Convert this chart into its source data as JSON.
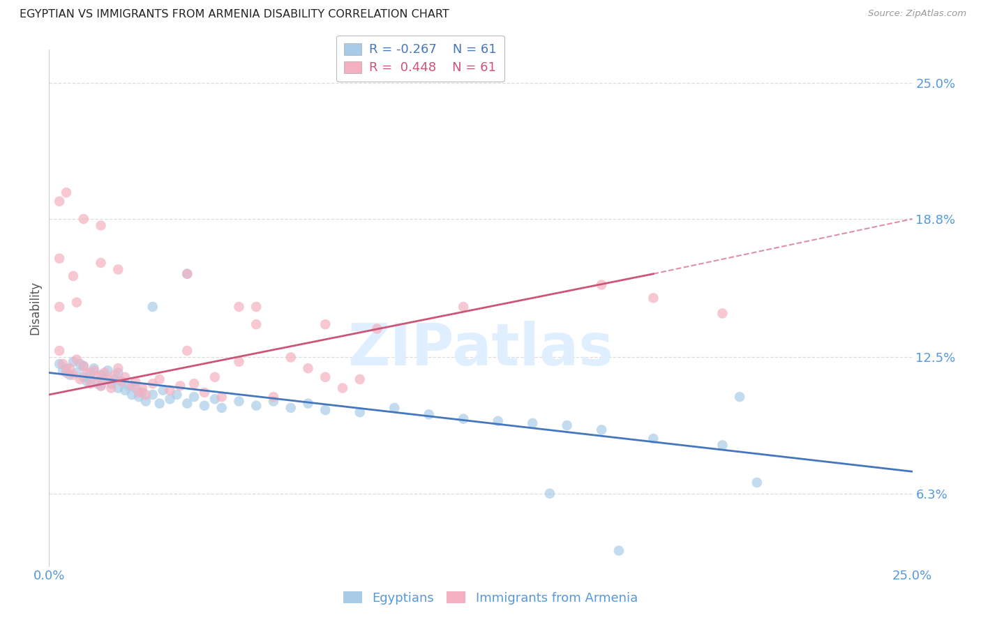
{
  "title": "EGYPTIAN VS IMMIGRANTS FROM ARMENIA DISABILITY CORRELATION CHART",
  "source": "Source: ZipAtlas.com",
  "ylabel": "Disability",
  "watermark": "ZIPatlas",
  "xlim": [
    0.0,
    0.25
  ],
  "ylim": [
    0.03,
    0.265
  ],
  "ytick_labels": [
    "6.3%",
    "12.5%",
    "18.8%",
    "25.0%"
  ],
  "ytick_values": [
    0.063,
    0.125,
    0.188,
    0.25
  ],
  "xtick_labels": [
    "0.0%",
    "25.0%"
  ],
  "xtick_values": [
    0.0,
    0.25
  ],
  "legend_r_blue": "-0.267",
  "legend_r_pink": "0.448",
  "legend_n": "61",
  "blue_color": "#a8cce8",
  "pink_color": "#f4b0c0",
  "line_blue_color": "#4477bb",
  "line_pink_color": "#cc5577",
  "axis_label_color": "#5599dd",
  "grid_color": "#dddddd",
  "background_color": "#ffffff",
  "blue_line": [
    [
      0.0,
      0.118
    ],
    [
      0.25,
      0.073
    ]
  ],
  "pink_line_solid": [
    [
      0.0,
      0.108
    ],
    [
      0.175,
      0.163
    ]
  ],
  "pink_line_dash": [
    [
      0.175,
      0.163
    ],
    [
      0.25,
      0.188
    ]
  ],
  "blue_scatter": [
    [
      0.003,
      0.122
    ],
    [
      0.004,
      0.119
    ],
    [
      0.005,
      0.12
    ],
    [
      0.006,
      0.117
    ],
    [
      0.007,
      0.123
    ],
    [
      0.008,
      0.118
    ],
    [
      0.009,
      0.122
    ],
    [
      0.01,
      0.116
    ],
    [
      0.01,
      0.121
    ],
    [
      0.011,
      0.114
    ],
    [
      0.012,
      0.118
    ],
    [
      0.012,
      0.115
    ],
    [
      0.013,
      0.12
    ],
    [
      0.014,
      0.113
    ],
    [
      0.015,
      0.117
    ],
    [
      0.015,
      0.112
    ],
    [
      0.016,
      0.116
    ],
    [
      0.017,
      0.119
    ],
    [
      0.018,
      0.113
    ],
    [
      0.019,
      0.115
    ],
    [
      0.02,
      0.118
    ],
    [
      0.02,
      0.111
    ],
    [
      0.021,
      0.114
    ],
    [
      0.022,
      0.11
    ],
    [
      0.023,
      0.112
    ],
    [
      0.024,
      0.108
    ],
    [
      0.025,
      0.111
    ],
    [
      0.026,
      0.107
    ],
    [
      0.027,
      0.109
    ],
    [
      0.028,
      0.105
    ],
    [
      0.03,
      0.108
    ],
    [
      0.032,
      0.104
    ],
    [
      0.033,
      0.11
    ],
    [
      0.035,
      0.106
    ],
    [
      0.037,
      0.108
    ],
    [
      0.04,
      0.104
    ],
    [
      0.042,
      0.107
    ],
    [
      0.045,
      0.103
    ],
    [
      0.048,
      0.106
    ],
    [
      0.05,
      0.102
    ],
    [
      0.055,
      0.105
    ],
    [
      0.06,
      0.103
    ],
    [
      0.065,
      0.105
    ],
    [
      0.07,
      0.102
    ],
    [
      0.075,
      0.104
    ],
    [
      0.08,
      0.101
    ],
    [
      0.09,
      0.1
    ],
    [
      0.1,
      0.102
    ],
    [
      0.11,
      0.099
    ],
    [
      0.12,
      0.097
    ],
    [
      0.13,
      0.096
    ],
    [
      0.14,
      0.095
    ],
    [
      0.15,
      0.094
    ],
    [
      0.16,
      0.092
    ],
    [
      0.175,
      0.088
    ],
    [
      0.195,
      0.085
    ],
    [
      0.03,
      0.148
    ],
    [
      0.04,
      0.163
    ],
    [
      0.2,
      0.107
    ],
    [
      0.205,
      0.068
    ],
    [
      0.145,
      0.063
    ],
    [
      0.165,
      0.037
    ]
  ],
  "pink_scatter": [
    [
      0.003,
      0.128
    ],
    [
      0.004,
      0.122
    ],
    [
      0.005,
      0.118
    ],
    [
      0.006,
      0.12
    ],
    [
      0.007,
      0.117
    ],
    [
      0.008,
      0.124
    ],
    [
      0.009,
      0.115
    ],
    [
      0.01,
      0.121
    ],
    [
      0.011,
      0.118
    ],
    [
      0.012,
      0.113
    ],
    [
      0.013,
      0.119
    ],
    [
      0.014,
      0.116
    ],
    [
      0.015,
      0.112
    ],
    [
      0.016,
      0.118
    ],
    [
      0.017,
      0.115
    ],
    [
      0.018,
      0.111
    ],
    [
      0.019,
      0.117
    ],
    [
      0.02,
      0.12
    ],
    [
      0.021,
      0.114
    ],
    [
      0.022,
      0.116
    ],
    [
      0.024,
      0.112
    ],
    [
      0.025,
      0.114
    ],
    [
      0.026,
      0.109
    ],
    [
      0.027,
      0.111
    ],
    [
      0.028,
      0.108
    ],
    [
      0.03,
      0.113
    ],
    [
      0.032,
      0.115
    ],
    [
      0.035,
      0.11
    ],
    [
      0.038,
      0.112
    ],
    [
      0.04,
      0.128
    ],
    [
      0.042,
      0.113
    ],
    [
      0.045,
      0.109
    ],
    [
      0.048,
      0.116
    ],
    [
      0.05,
      0.107
    ],
    [
      0.055,
      0.123
    ],
    [
      0.06,
      0.14
    ],
    [
      0.065,
      0.107
    ],
    [
      0.07,
      0.125
    ],
    [
      0.075,
      0.12
    ],
    [
      0.08,
      0.116
    ],
    [
      0.085,
      0.111
    ],
    [
      0.09,
      0.115
    ],
    [
      0.003,
      0.196
    ],
    [
      0.005,
      0.2
    ],
    [
      0.01,
      0.188
    ],
    [
      0.015,
      0.185
    ],
    [
      0.003,
      0.17
    ],
    [
      0.007,
      0.162
    ],
    [
      0.003,
      0.148
    ],
    [
      0.008,
      0.15
    ],
    [
      0.015,
      0.168
    ],
    [
      0.02,
      0.165
    ],
    [
      0.04,
      0.163
    ],
    [
      0.055,
      0.148
    ],
    [
      0.06,
      0.148
    ],
    [
      0.08,
      0.14
    ],
    [
      0.095,
      0.138
    ],
    [
      0.12,
      0.148
    ],
    [
      0.16,
      0.158
    ],
    [
      0.175,
      0.152
    ],
    [
      0.195,
      0.145
    ]
  ]
}
